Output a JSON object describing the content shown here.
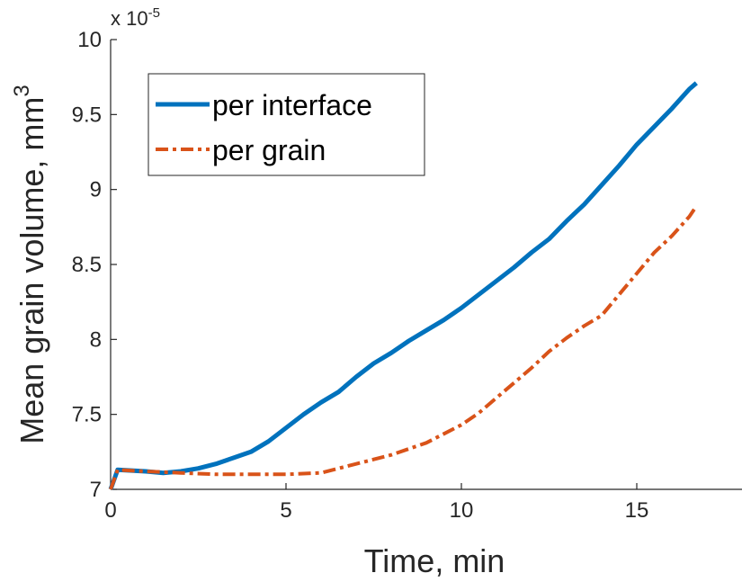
{
  "chart_data": {
    "type": "line",
    "title": "",
    "xlabel": "Time, min",
    "ylabel": "Mean grain volume, mm",
    "ylabel_superscript": "3",
    "y_multiplier_base": "x 10",
    "y_multiplier_exponent": "-5",
    "xlim": [
      0,
      18
    ],
    "ylim": [
      7,
      10
    ],
    "x_ticks": [
      0,
      5,
      10,
      15
    ],
    "x_tick_labels": [
      "0",
      "5",
      "10",
      "15"
    ],
    "y_ticks": [
      7,
      7.5,
      8,
      8.5,
      9,
      9.5,
      10
    ],
    "y_tick_labels": [
      "7",
      "7.5",
      "8",
      "8.5",
      "9",
      "9.5",
      "10"
    ],
    "grid": false,
    "legend_position": "top-left",
    "series": [
      {
        "name": "per interface",
        "color": "#0072BD",
        "style": "solid",
        "x": [
          0,
          0.2,
          1,
          1.5,
          2,
          2.5,
          3,
          3.5,
          4,
          4.5,
          5,
          5.5,
          6,
          6.5,
          7,
          7.5,
          8,
          8.5,
          9,
          9.5,
          10,
          10.5,
          11,
          11.5,
          12,
          12.5,
          13,
          13.5,
          14,
          14.5,
          15,
          15.5,
          16,
          16.5,
          16.7
        ],
        "y": [
          7.0,
          7.13,
          7.12,
          7.11,
          7.12,
          7.14,
          7.17,
          7.21,
          7.25,
          7.32,
          7.41,
          7.5,
          7.58,
          7.65,
          7.75,
          7.84,
          7.91,
          7.99,
          8.06,
          8.13,
          8.21,
          8.3,
          8.39,
          8.48,
          8.58,
          8.67,
          8.79,
          8.9,
          9.03,
          9.16,
          9.3,
          9.42,
          9.54,
          9.67,
          9.71
        ]
      },
      {
        "name": "per grain",
        "color": "#D95319",
        "style": "dashdot",
        "x": [
          0,
          0.2,
          1,
          2,
          3,
          4,
          5,
          6,
          6.5,
          7,
          7.5,
          8,
          8.5,
          9,
          9.5,
          10,
          10.5,
          11,
          11.5,
          12,
          12.5,
          13,
          13.5,
          14,
          14.5,
          15,
          15.5,
          16,
          16.5,
          16.7
        ],
        "y": [
          7.0,
          7.13,
          7.12,
          7.11,
          7.1,
          7.1,
          7.1,
          7.11,
          7.14,
          7.17,
          7.2,
          7.23,
          7.27,
          7.31,
          7.37,
          7.43,
          7.51,
          7.61,
          7.71,
          7.81,
          7.92,
          8.01,
          8.09,
          8.16,
          8.3,
          8.44,
          8.58,
          8.69,
          8.82,
          8.89
        ]
      }
    ]
  }
}
